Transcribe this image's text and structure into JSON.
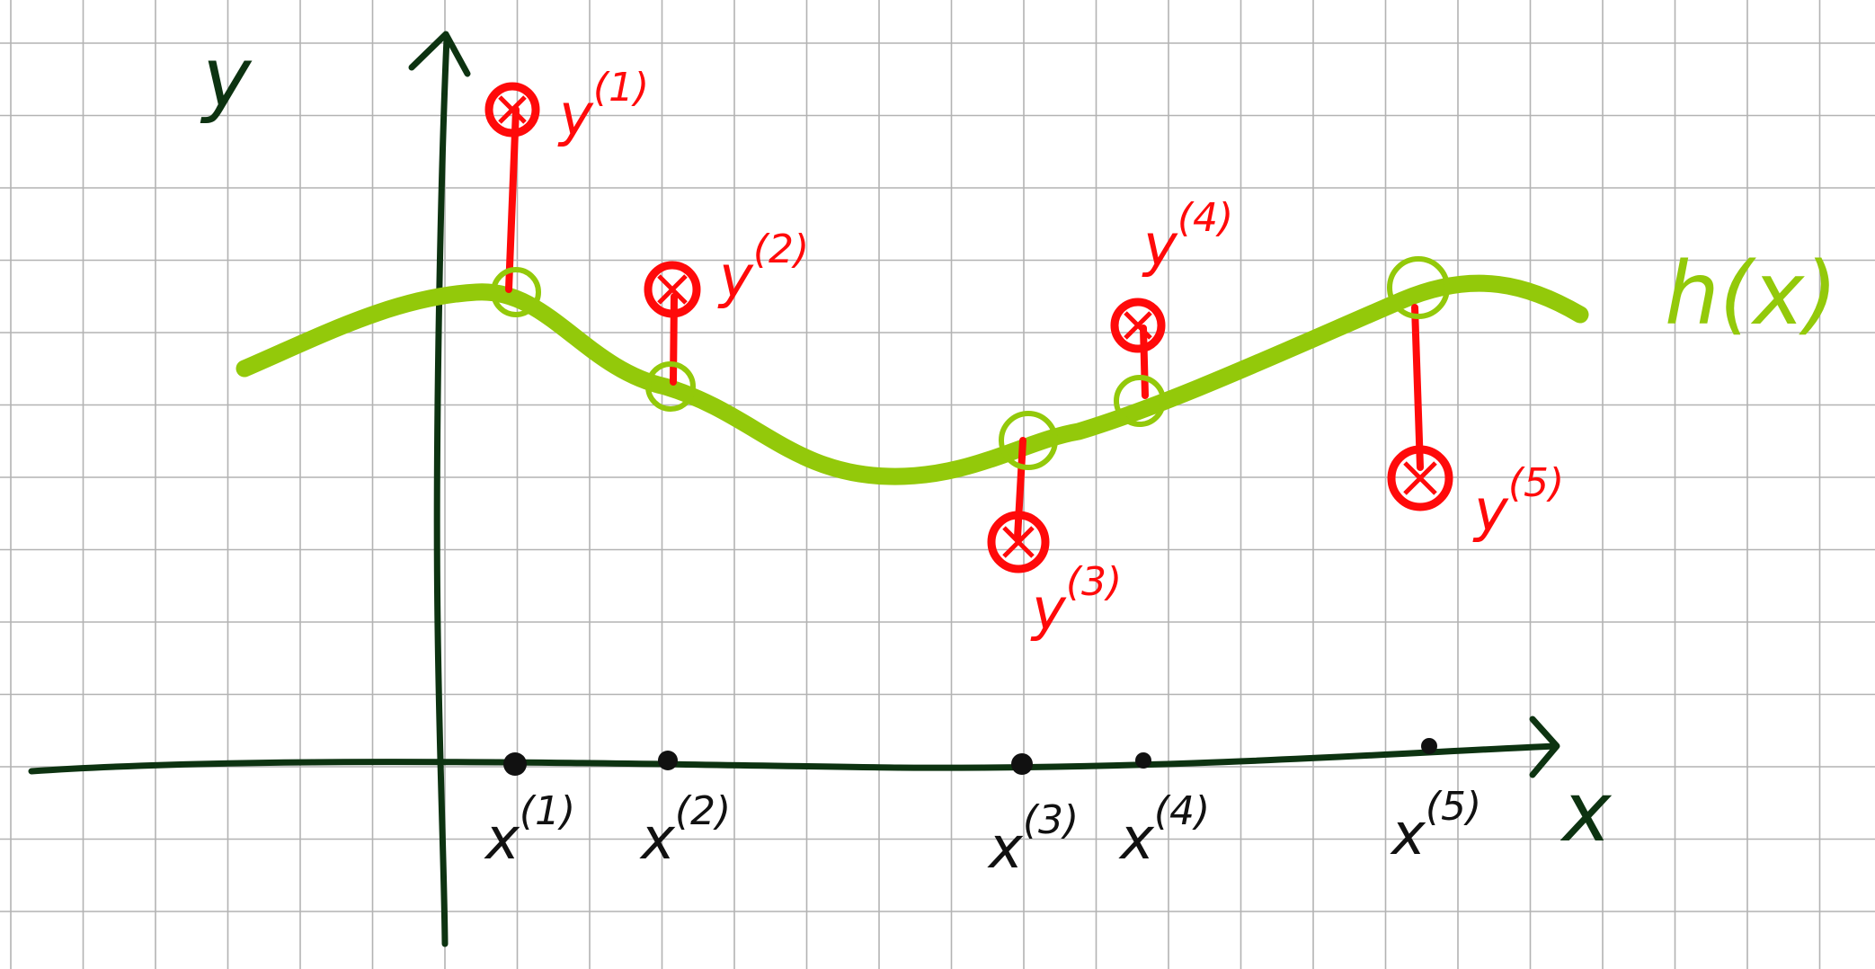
{
  "axes": {
    "x_label": "x",
    "y_label": "y"
  },
  "curve": {
    "label": "h(x)"
  },
  "samples": [
    {
      "x_label": "x",
      "x_index": "(1)",
      "y_label": "y",
      "y_index": "(1)"
    },
    {
      "x_label": "x",
      "x_index": "(2)",
      "y_label": "y",
      "y_index": "(2)"
    },
    {
      "x_label": "x",
      "x_index": "(3)",
      "y_label": "y",
      "y_index": "(3)"
    },
    {
      "x_label": "x",
      "x_index": "(4)",
      "y_label": "y",
      "y_index": "(4)"
    },
    {
      "x_label": "x",
      "x_index": "(5)",
      "y_label": "y",
      "y_index": "(5)"
    }
  ],
  "colors": {
    "grid": "#b3b3b3",
    "axis": "#0d3311",
    "curve": "#93c90a",
    "data_point": "#ff0a0a",
    "tick": "#111111"
  }
}
